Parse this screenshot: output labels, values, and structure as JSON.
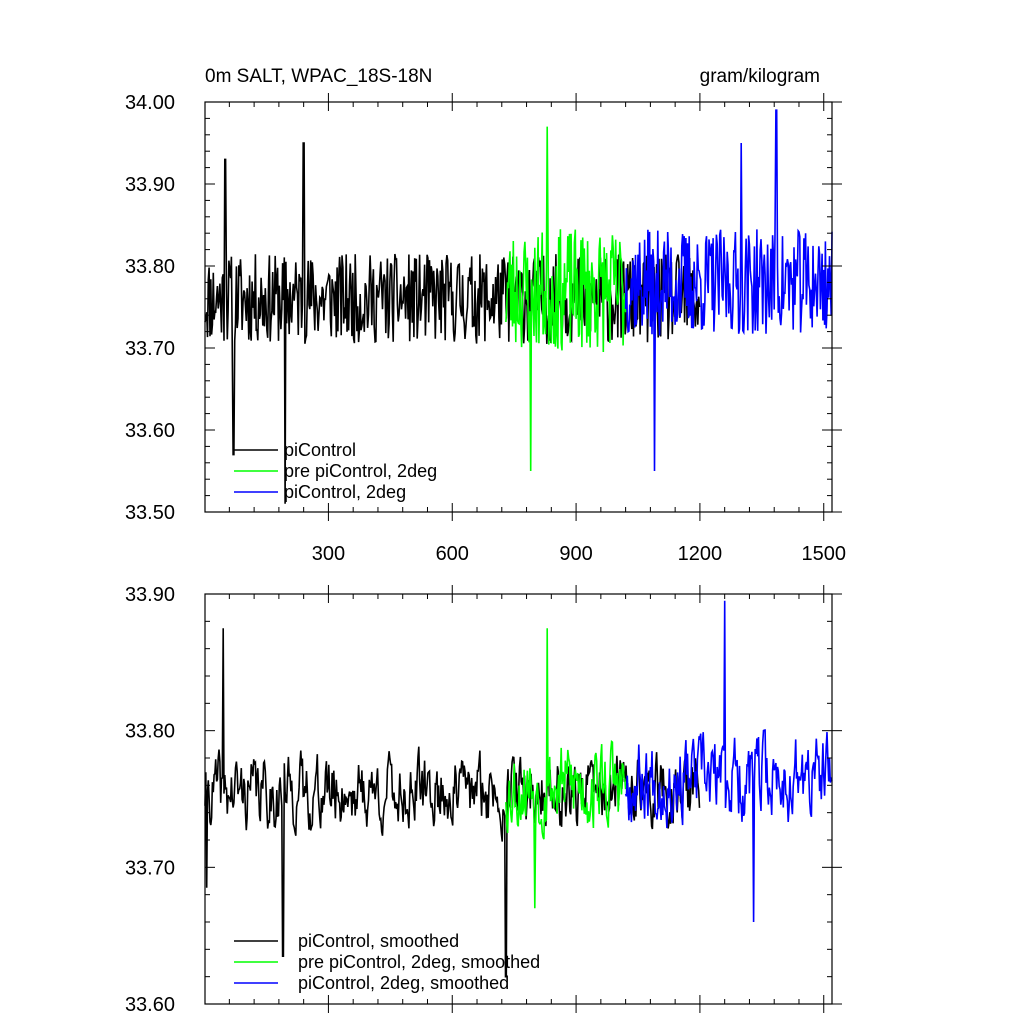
{
  "chart_data": [
    {
      "type": "line",
      "title": "0m SALT, WPAC_18S-18N",
      "units": "gram/kilogram",
      "xlim": [
        1,
        1520
      ],
      "ylim": [
        33.5,
        34.0
      ],
      "x_ticks": [
        300,
        600,
        900,
        1200,
        1500
      ],
      "x_tick_labels": [
        "300",
        "600",
        "900",
        "1200",
        "1500"
      ],
      "y_ticks": [
        33.5,
        33.6,
        33.7,
        33.8,
        33.9,
        34.0
      ],
      "y_tick_labels": [
        "33.50",
        "33.60",
        "33.70",
        "33.80",
        "33.90",
        "34.00"
      ],
      "legend_position": "bottom-left",
      "series": [
        {
          "name": "piControl",
          "color": "#000000",
          "x_start": 1,
          "x_end": 1200,
          "mean": 33.76,
          "amplitude": 0.055,
          "extremes": [
            [
              50,
              33.93
            ],
            [
              240,
              33.95
            ],
            [
              70,
              33.57
            ],
            [
              195,
              33.51
            ]
          ],
          "seed": 11
        },
        {
          "name": "pre piControl, 2deg",
          "color": "#00ff00",
          "x_start": 730,
          "x_end": 1020,
          "mean": 33.77,
          "amplitude": 0.075,
          "extremes": [
            [
              830,
              33.97
            ],
            [
              790,
              33.55
            ]
          ],
          "seed": 23
        },
        {
          "name": "piControl, 2deg",
          "color": "#0000ff",
          "x_start": 1020,
          "x_end": 1520,
          "mean": 33.78,
          "amplitude": 0.065,
          "extremes": [
            [
              1385,
              33.99
            ],
            [
              1300,
              33.95
            ],
            [
              1090,
              33.55
            ]
          ],
          "seed": 37
        }
      ]
    },
    {
      "type": "line",
      "title": "",
      "xlim": [
        1,
        1520
      ],
      "ylim": [
        33.6,
        33.9
      ],
      "x_ticks": [
        300,
        600,
        900,
        1200,
        1500
      ],
      "y_ticks": [
        33.6,
        33.7,
        33.8,
        33.9
      ],
      "y_tick_labels": [
        "33.60",
        "33.70",
        "33.80",
        "33.90"
      ],
      "legend_position": "bottom-left",
      "series": [
        {
          "name": "piControl, smoothed",
          "color": "#000000",
          "x_start": 1,
          "x_end": 1200,
          "mean": 33.755,
          "amplitude": 0.028,
          "extremes": [
            [
              45,
              33.875
            ],
            [
              5,
              33.685
            ],
            [
              190,
              33.635
            ],
            [
              730,
              33.62
            ]
          ],
          "seed": 41
        },
        {
          "name": "pre piControl, 2deg, smoothed",
          "color": "#00ff00",
          "x_start": 730,
          "x_end": 1020,
          "mean": 33.76,
          "amplitude": 0.035,
          "extremes": [
            [
              830,
              33.875
            ],
            [
              800,
              33.67
            ]
          ],
          "seed": 53
        },
        {
          "name": "piControl, 2deg, smoothed",
          "color": "#0000ff",
          "x_start": 1020,
          "x_end": 1520,
          "mean": 33.765,
          "amplitude": 0.033,
          "extremes": [
            [
              1260,
              33.895
            ],
            [
              1330,
              33.66
            ]
          ],
          "seed": 67
        }
      ]
    }
  ]
}
